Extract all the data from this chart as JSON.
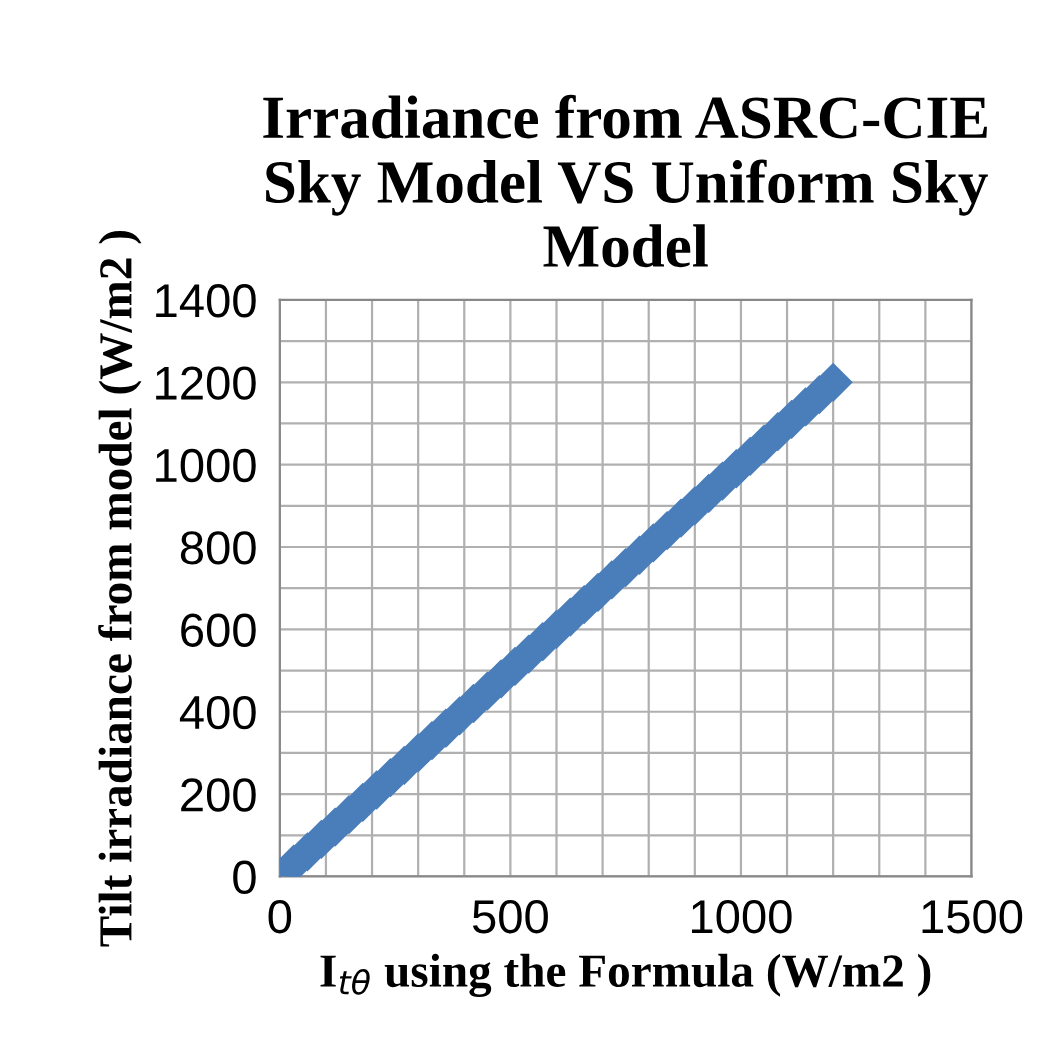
{
  "chart_data": {
    "type": "scatter",
    "title": "Irradiance from ASRC-CIE\nSky Model VS Uniform Sky\nModel",
    "xlabel": "I$_{tθ}$ using the Formula (W/m2 )",
    "ylabel": "Tilt irradiance from model (W/m2 )",
    "series": [
      {
        "color": "#4a7ebb",
        "x": [
          0,
          30,
          60,
          90,
          120,
          150,
          180,
          210,
          240,
          270,
          300,
          330,
          360,
          390,
          420,
          450,
          480,
          510,
          540,
          570,
          600,
          630,
          660,
          690,
          720,
          750,
          780,
          810,
          840,
          870,
          900,
          930,
          960,
          990,
          1020,
          1050,
          1080,
          1110,
          1140,
          1170,
          1200
        ],
        "values": [
          0,
          30,
          60,
          90,
          120,
          150,
          180,
          210,
          240,
          270,
          300,
          330,
          360,
          390,
          420,
          450,
          480,
          510,
          540,
          570,
          600,
          630,
          660,
          690,
          720,
          750,
          780,
          810,
          840,
          870,
          900,
          930,
          960,
          990,
          1020,
          1050,
          1080,
          1110,
          1140,
          1170,
          1200
        ]
      }
    ],
    "marker": "diamond",
    "grid": true,
    "legend": false,
    "xlim": [
      0,
      1500
    ],
    "ylim": [
      0,
      1400
    ],
    "xticks": [
      0,
      {
        "value": 100,
        "label": null
      },
      {
        "value": 200,
        "label": null
      },
      {
        "value": 300,
        "label": null
      },
      {
        "value": 400,
        "label": null
      },
      500,
      {
        "value": 600,
        "label": null
      },
      {
        "value": 700,
        "label": null
      },
      {
        "value": 800,
        "label": null
      },
      {
        "value": 900,
        "label": null
      },
      1000,
      {
        "value": 1100,
        "label": null
      },
      {
        "value": 1200,
        "label": null
      },
      {
        "value": 1300,
        "label": null
      },
      {
        "value": 1400,
        "label": null
      },
      1500
    ],
    "yticks": [
      0,
      {
        "value": 100,
        "label": null
      },
      200,
      {
        "value": 300,
        "label": null
      },
      400,
      {
        "value": 500,
        "label": null
      },
      600,
      {
        "value": 700,
        "label": null
      },
      800,
      {
        "value": 900,
        "label": null
      },
      1000,
      {
        "value": 1100,
        "label": null
      },
      1200,
      {
        "value": 1300,
        "label": null
      },
      1400
    ]
  }
}
